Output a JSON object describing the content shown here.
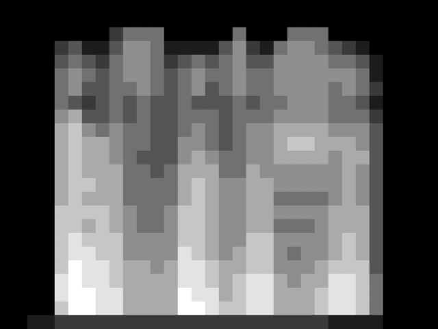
{
  "chart_data": {
    "type": "heatmap",
    "tick_labels": false,
    "color_range": [
      0,
      9
    ],
    "cells": [
      [
        0,
        0,
        0,
        0,
        0,
        0,
        0,
        0,
        0,
        0,
        0,
        0,
        0,
        0,
        0,
        0,
        0,
        0,
        0,
        0,
        0,
        0,
        0,
        0,
        0,
        0,
        0,
        0,
        0,
        0,
        0,
        0
      ],
      [
        0,
        0,
        0,
        0,
        0,
        0,
        0,
        0,
        0,
        0,
        0,
        0,
        0,
        0,
        0,
        0,
        0,
        0,
        0,
        0,
        0,
        0,
        0,
        0,
        0,
        0,
        0,
        0,
        0,
        0,
        0,
        0
      ],
      [
        0,
        0,
        0,
        0,
        0,
        0,
        0,
        0,
        2,
        4,
        4,
        4,
        0,
        0,
        0,
        0,
        0,
        4,
        0,
        0,
        0,
        4,
        4,
        4,
        0,
        0,
        0,
        0,
        0,
        0,
        0,
        0
      ],
      [
        0,
        0,
        0,
        0,
        2,
        3,
        1,
        1,
        3,
        5,
        5,
        4,
        1,
        1,
        1,
        1,
        3,
        5,
        2,
        1,
        4,
        5,
        5,
        4,
        3,
        2,
        1,
        0,
        0,
        0,
        0,
        0
      ],
      [
        0,
        0,
        0,
        0,
        3,
        4,
        3,
        2,
        4,
        5,
        5,
        4,
        2,
        3,
        4,
        3,
        4,
        5,
        3,
        3,
        5,
        5,
        5,
        5,
        4,
        4,
        3,
        1,
        0,
        0,
        0,
        0
      ],
      [
        0,
        0,
        0,
        0,
        4,
        5,
        4,
        3,
        4,
        5,
        5,
        4,
        3,
        4,
        5,
        4,
        4,
        5,
        4,
        4,
        5,
        5,
        5,
        5,
        5,
        5,
        4,
        1,
        0,
        0,
        0,
        0
      ],
      [
        0,
        0,
        0,
        0,
        4,
        5,
        3,
        3,
        4,
        4,
        5,
        4,
        3,
        4,
        5,
        3,
        4,
        5,
        4,
        4,
        5,
        5,
        5,
        5,
        4,
        5,
        4,
        2,
        0,
        0,
        0,
        0
      ],
      [
        0,
        0,
        0,
        0,
        4,
        3,
        2,
        3,
        4,
        3,
        4,
        3,
        3,
        4,
        3,
        3,
        3,
        4,
        3,
        4,
        4,
        5,
        5,
        5,
        4,
        4,
        3,
        1,
        0,
        0,
        0,
        0
      ],
      [
        0,
        0,
        0,
        0,
        5,
        6,
        3,
        3,
        4,
        3,
        4,
        3,
        3,
        4,
        4,
        4,
        3,
        4,
        4,
        4,
        5,
        5,
        5,
        5,
        4,
        4,
        4,
        2,
        0,
        0,
        0,
        0
      ],
      [
        0,
        0,
        0,
        0,
        6,
        7,
        5,
        4,
        5,
        4,
        4,
        3,
        3,
        4,
        5,
        4,
        3,
        4,
        5,
        5,
        6,
        6,
        6,
        6,
        5,
        5,
        5,
        3,
        0,
        0,
        0,
        0
      ],
      [
        0,
        0,
        0,
        0,
        6,
        7,
        6,
        6,
        5,
        4,
        4,
        3,
        3,
        5,
        5,
        4,
        3,
        4,
        5,
        5,
        6,
        7,
        7,
        6,
        6,
        6,
        5,
        3,
        0,
        0,
        0,
        0
      ],
      [
        0,
        0,
        0,
        0,
        6,
        7,
        6,
        6,
        5,
        4,
        3,
        3,
        3,
        5,
        6,
        5,
        4,
        4,
        5,
        5,
        6,
        6,
        6,
        6,
        5,
        6,
        6,
        3,
        0,
        0,
        0,
        0
      ],
      [
        0,
        0,
        0,
        0,
        6,
        7,
        6,
        6,
        6,
        4,
        4,
        3,
        4,
        6,
        6,
        6,
        4,
        4,
        6,
        5,
        5,
        5,
        5,
        5,
        5,
        6,
        5,
        3,
        0,
        0,
        0,
        0
      ],
      [
        0,
        0,
        0,
        0,
        6,
        7,
        7,
        6,
        6,
        4,
        4,
        4,
        4,
        6,
        7,
        6,
        5,
        5,
        6,
        6,
        5,
        5,
        5,
        5,
        5,
        6,
        5,
        3,
        0,
        0,
        0,
        0
      ],
      [
        0,
        0,
        0,
        0,
        6,
        7,
        6,
        6,
        6,
        4,
        4,
        4,
        4,
        6,
        7,
        6,
        5,
        5,
        6,
        6,
        4,
        4,
        4,
        4,
        5,
        6,
        5,
        3,
        0,
        0,
        0,
        0
      ],
      [
        0,
        0,
        0,
        0,
        7,
        7,
        7,
        7,
        6,
        5,
        4,
        4,
        5,
        7,
        7,
        6,
        5,
        5,
        6,
        6,
        5,
        5,
        5,
        5,
        6,
        6,
        6,
        3,
        0,
        0,
        0,
        0
      ],
      [
        0,
        0,
        0,
        0,
        7,
        7,
        6,
        7,
        6,
        5,
        4,
        4,
        5,
        7,
        7,
        6,
        5,
        5,
        6,
        6,
        4,
        4,
        4,
        5,
        6,
        6,
        6,
        3,
        0,
        0,
        0,
        0
      ],
      [
        0,
        0,
        0,
        0,
        7,
        8,
        7,
        7,
        7,
        5,
        5,
        5,
        5,
        7,
        7,
        6,
        5,
        5,
        7,
        7,
        5,
        5,
        5,
        5,
        6,
        7,
        6,
        3,
        0,
        0,
        0,
        0
      ],
      [
        0,
        0,
        0,
        0,
        7,
        8,
        8,
        7,
        7,
        5,
        5,
        5,
        5,
        8,
        7,
        6,
        5,
        6,
        7,
        7,
        5,
        4,
        5,
        5,
        6,
        7,
        6,
        3,
        0,
        0,
        0,
        0
      ],
      [
        0,
        0,
        0,
        0,
        7,
        9,
        8,
        8,
        7,
        6,
        6,
        5,
        6,
        8,
        8,
        7,
        6,
        6,
        7,
        7,
        5,
        5,
        5,
        6,
        7,
        7,
        7,
        3,
        0,
        0,
        0,
        0
      ],
      [
        0,
        0,
        0,
        0,
        8,
        9,
        8,
        8,
        7,
        6,
        6,
        6,
        6,
        8,
        8,
        7,
        6,
        7,
        8,
        8,
        6,
        5,
        6,
        6,
        8,
        8,
        7,
        4,
        0,
        0,
        0,
        0
      ],
      [
        0,
        0,
        0,
        0,
        8,
        9,
        9,
        8,
        8,
        6,
        6,
        6,
        6,
        9,
        8,
        8,
        6,
        7,
        8,
        8,
        6,
        6,
        6,
        7,
        8,
        8,
        7,
        4,
        0,
        0,
        0,
        0
      ],
      [
        0,
        0,
        0,
        0,
        7,
        9,
        9,
        8,
        8,
        6,
        6,
        6,
        6,
        9,
        9,
        8,
        7,
        7,
        8,
        8,
        6,
        6,
        6,
        7,
        8,
        8,
        7,
        4,
        0,
        0,
        0,
        0
      ],
      [
        0,
        0,
        1,
        1,
        2,
        2,
        2,
        2,
        2,
        2,
        2,
        2,
        2,
        2,
        2,
        2,
        2,
        2,
        2,
        2,
        2,
        2,
        2,
        2,
        1,
        1,
        1,
        1,
        0,
        0,
        0,
        0
      ]
    ]
  }
}
